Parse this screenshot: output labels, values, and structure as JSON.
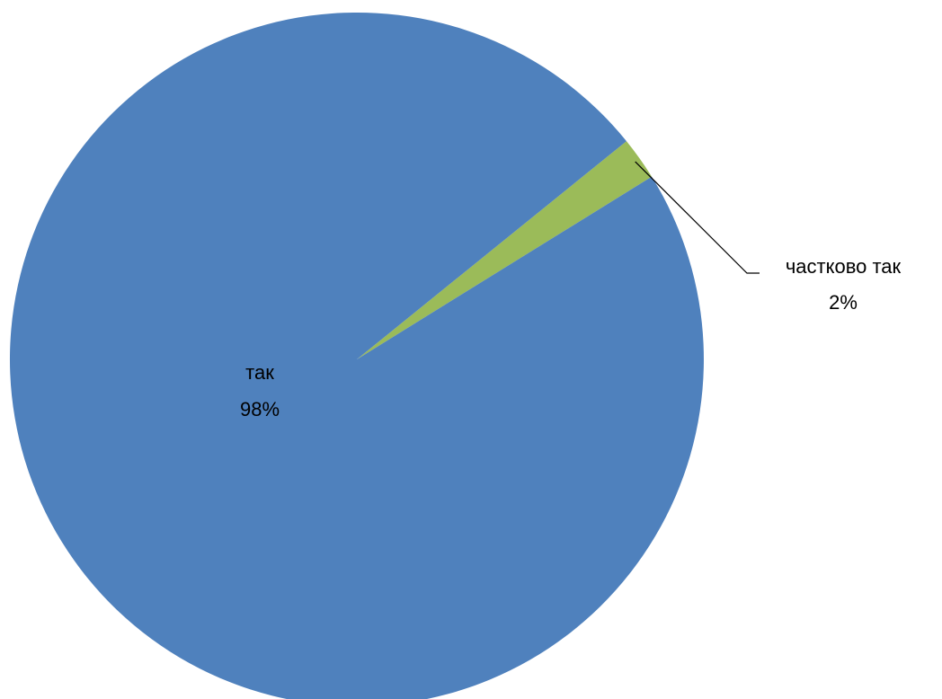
{
  "chart_data": {
    "type": "pie",
    "title": "",
    "start_angle_deg": 39,
    "direction": "clockwise",
    "slices": [
      {
        "label": "частково так",
        "value": 2,
        "percent_label": "2%",
        "color": "#9bbb59",
        "label_position": "outside-right"
      },
      {
        "label": "так",
        "value": 98,
        "percent_label": "98%",
        "color": "#4f81bd",
        "label_position": "inside"
      }
    ],
    "legend": false
  }
}
